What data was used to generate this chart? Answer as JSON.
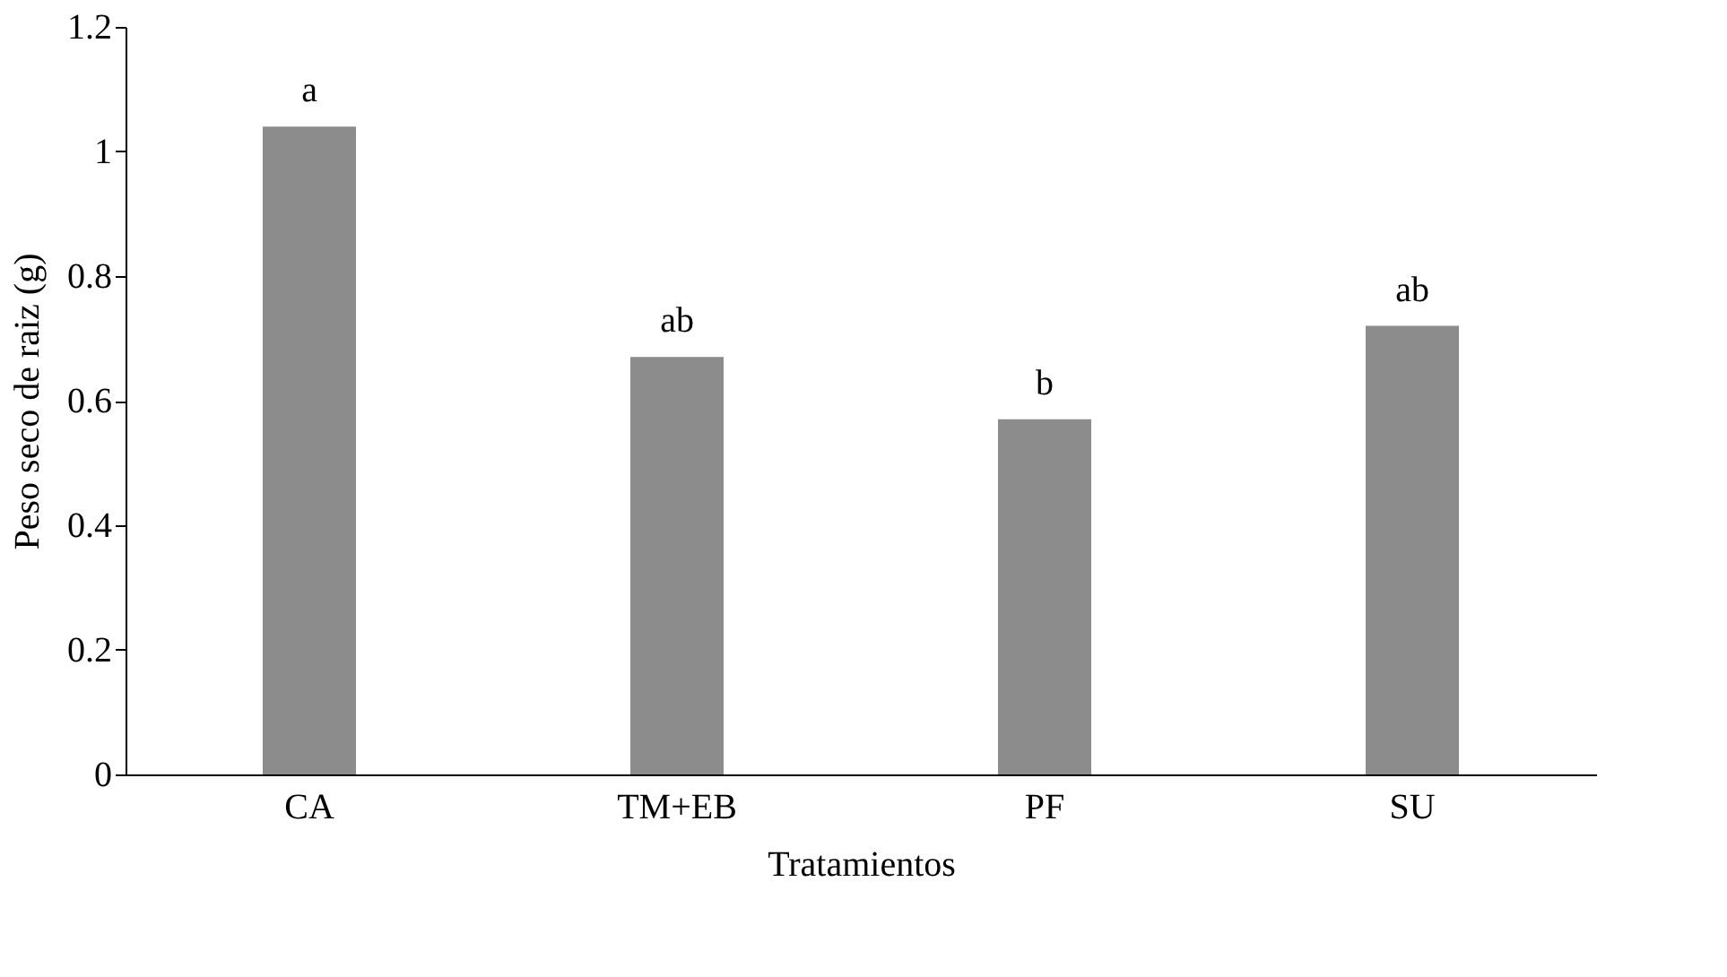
{
  "chart_data": {
    "type": "bar",
    "xlabel": "Tratamientos",
    "ylabel": "Peso seco de raiz (g)",
    "categories": [
      "CA",
      "TM+EB",
      "PF",
      "SU"
    ],
    "values": [
      1.04,
      0.67,
      0.57,
      0.72
    ],
    "color": "#8c8c8c",
    "ylim": [
      0,
      1.2
    ],
    "yticks": [
      0,
      0.2,
      0.4,
      0.6,
      0.8,
      1,
      1.2
    ],
    "grid": false,
    "annotations": [
      {
        "text": "a",
        "x": "CA",
        "y": 1.04
      },
      {
        "text": "ab",
        "x": "TM+EB",
        "y": 0.67
      },
      {
        "text": "b",
        "x": "PF",
        "y": 0.57
      },
      {
        "text": "ab",
        "x": "SU",
        "y": 0.72
      }
    ]
  }
}
